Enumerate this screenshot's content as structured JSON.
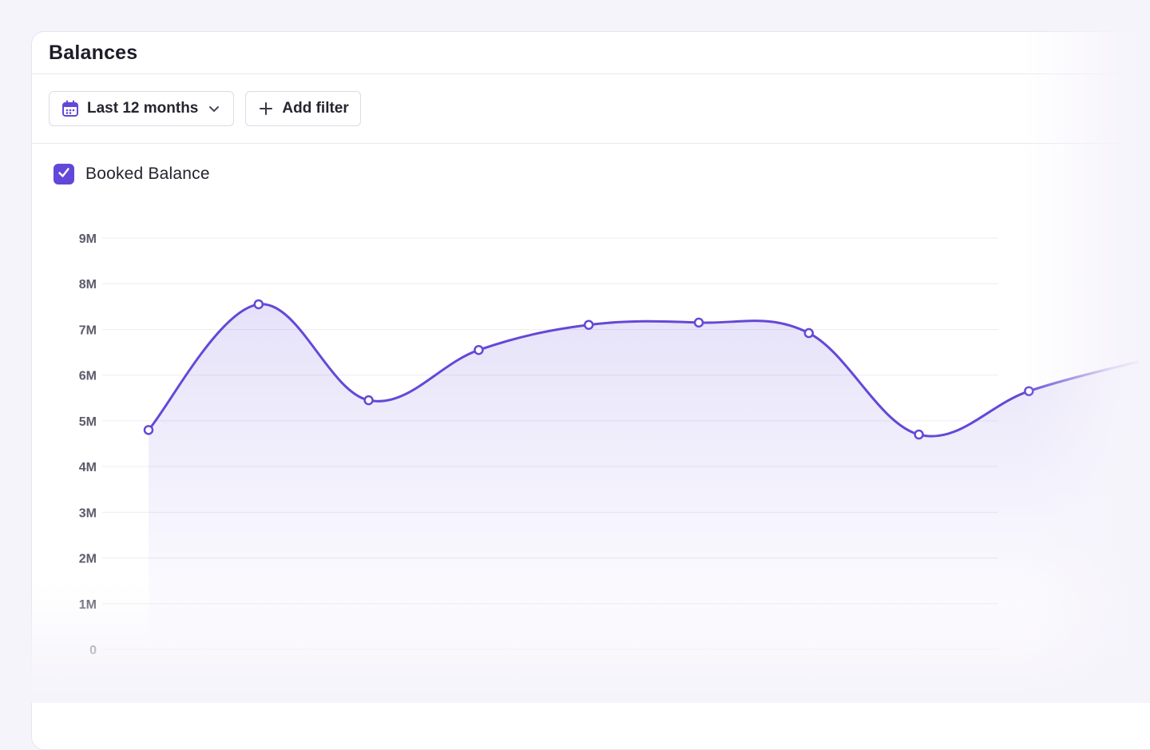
{
  "card": {
    "title": "Balances"
  },
  "toolbar": {
    "period_label": "Last 12 months",
    "add_filter_label": "Add filter"
  },
  "legend": {
    "checked": true,
    "label": "Booked Balance"
  },
  "colors": {
    "accent": "#6247d9",
    "line": "#6448d6",
    "grid": "#eeecf3",
    "tick_text": "#5d5b69"
  },
  "icons": {
    "period": "calendar-icon",
    "dropdown": "chevron-down-icon",
    "add": "plus-icon",
    "check": "check-icon"
  },
  "chart_data": {
    "type": "area",
    "series": [
      {
        "name": "Booked Balance",
        "values": [
          4.8,
          7.55,
          5.45,
          6.55,
          7.1,
          7.15,
          6.92,
          4.7,
          5.65,
          6.3
        ]
      }
    ],
    "yticks": [
      "0",
      "1M",
      "2M",
      "3M",
      "4M",
      "5M",
      "6M",
      "7M",
      "8M",
      "9M"
    ],
    "ylim": [
      0,
      9000000
    ],
    "grid": true,
    "markers": true
  }
}
